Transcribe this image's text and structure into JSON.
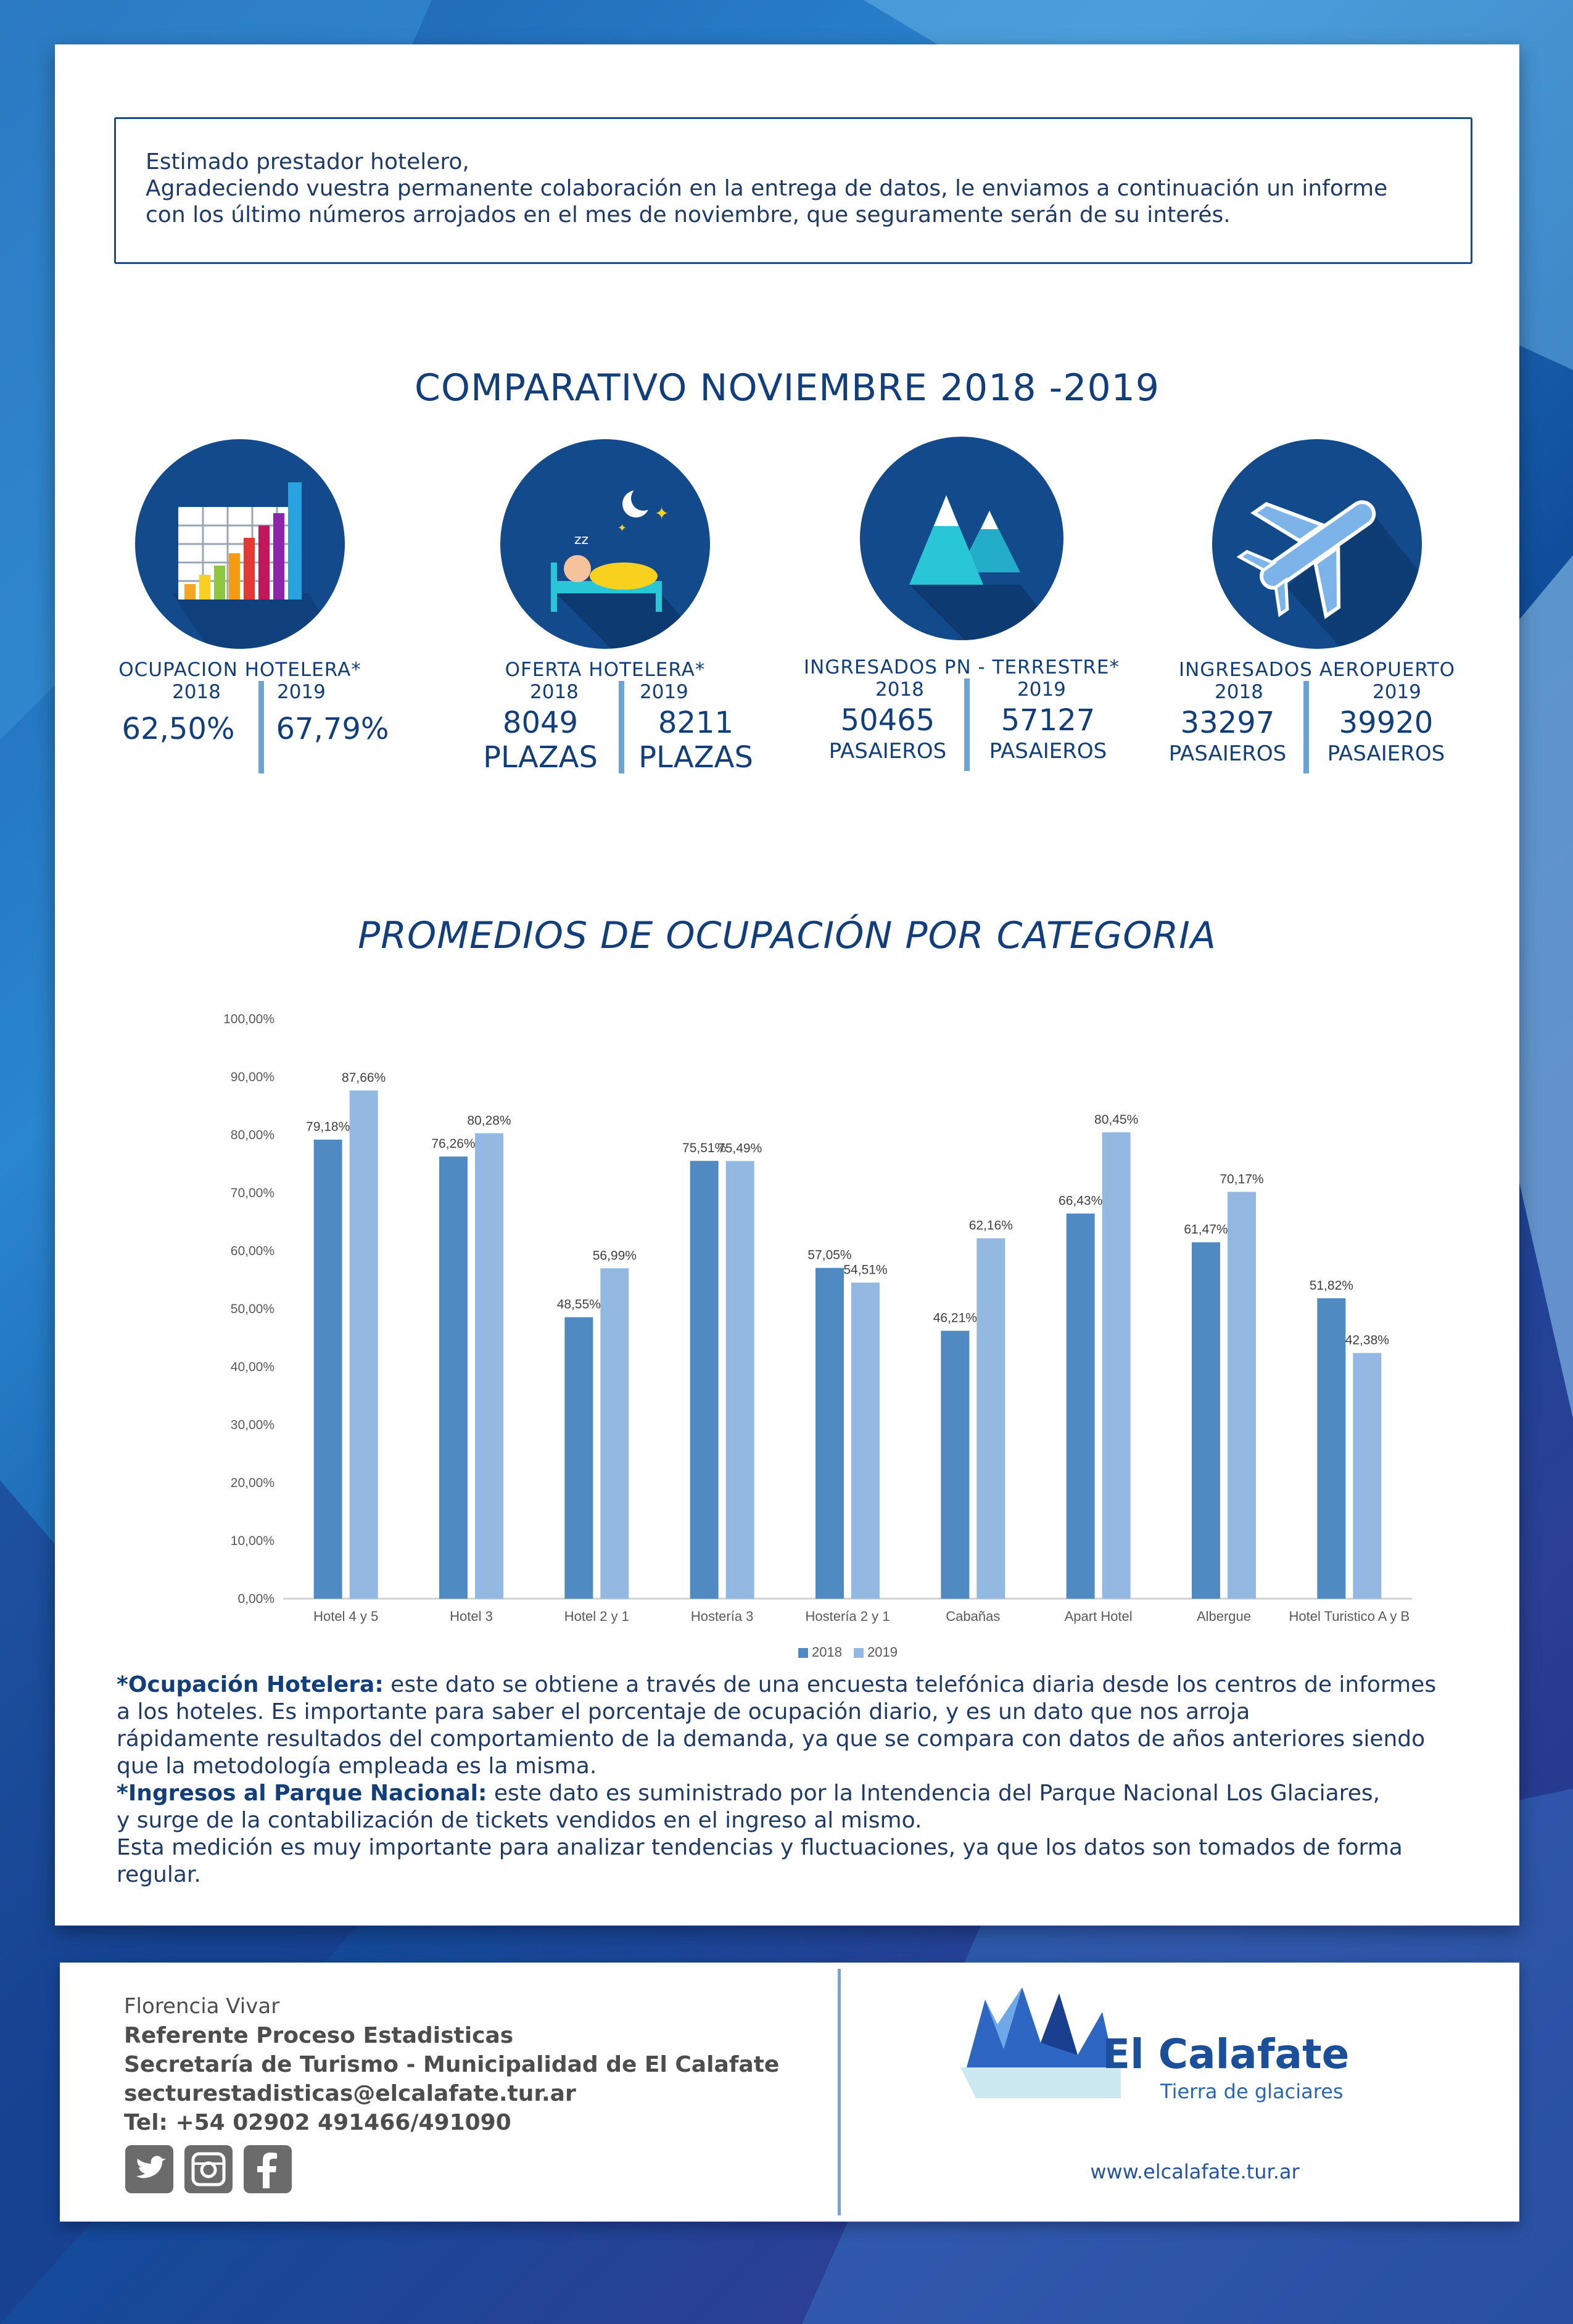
{
  "intro": {
    "line1": "Estimado prestador hotelero,",
    "line2": "Agradeciendo vuestra permanente colaboración en la entrega de datos, le enviamos a continuación un informe",
    "line3": "con los último números arrojados en el mes de noviembre, que seguramente serán de su interés."
  },
  "title1": "COMPARATIVO NOVIEMBRE 2018 -2019",
  "stats": [
    {
      "icon": "bar-chart-icon",
      "label": "OCUPACION HOTELERA*",
      "y1": "2018",
      "y2": "2019",
      "v1": "62,50%",
      "v2": "67,79%"
    },
    {
      "icon": "bed-icon",
      "label": "OFERTA HOTELERA*",
      "y1": "2018",
      "y2": "2019",
      "v1": "8049",
      "v1b": "PLAZAS",
      "v2": "8211",
      "v2b": "PLAZAS"
    },
    {
      "icon": "mountains-icon",
      "label": "INGRESADOS PN - TERRESTRE*",
      "y1": "2018",
      "y2": "2019",
      "v1": "50465",
      "v1b": "PASAIEROS",
      "v2": "57127",
      "v2b": "PASAIEROS"
    },
    {
      "icon": "airplane-icon",
      "label": "INGRESADOS AEROPUERTO",
      "y1": "2018",
      "y2": "2019",
      "v1": "33297",
      "v1b": "PASAIEROS",
      "v2": "39920",
      "v2b": "PASAIEROS"
    }
  ],
  "title2": "PROMEDIOS DE OCUPACIÓN POR CATEGORIA",
  "chart_data": {
    "type": "bar",
    "categories": [
      "Hotel 4 y 5",
      "Hotel 3",
      "Hotel 2 y 1",
      "Hostería 3",
      "Hostería 2 y 1",
      "Cabañas",
      "Apart Hotel",
      "Albergue",
      "Hotel Turistico A y B"
    ],
    "series": [
      {
        "name": "2018",
        "values": [
          79.18,
          76.26,
          48.55,
          75.51,
          57.05,
          46.21,
          66.43,
          61.47,
          51.82
        ],
        "labels": [
          "79,18%",
          "76,26%",
          "48,55%",
          "75,51%",
          "57,05%",
          "46,21%",
          "66,43%",
          "61,47%",
          "51,82%"
        ],
        "color": "#4f8ac3"
      },
      {
        "name": "2019",
        "values": [
          87.66,
          80.28,
          56.99,
          75.49,
          54.51,
          62.16,
          80.45,
          70.17,
          42.38
        ],
        "labels": [
          "87,66%",
          "80,28%",
          "56,99%",
          "75,49%",
          "54,51%",
          "62,16%",
          "80,45%",
          "70,17%",
          "42,38%"
        ],
        "color": "#93b8e2"
      }
    ],
    "ylim": [
      0,
      100
    ],
    "yticks": [
      "0,00%",
      "10,00%",
      "20,00%",
      "30,00%",
      "40,00%",
      "50,00%",
      "60,00%",
      "70,00%",
      "80,00%",
      "90,00%",
      "100,00%"
    ],
    "legend": "bottom",
    "grid": false
  },
  "notes": {
    "n1_bold": "*Ocupación Hotelera:",
    "n1_a": " este dato se obtiene a través de una encuesta telefónica diaria desde los centros de informes",
    "n1_b": "a los hoteles. Es importante para saber el porcentaje de ocupación diario, y es un dato que nos arroja",
    "n1_c": "rápidamente resultados del comportamiento de la demanda, ya que se compara con datos de años anteriores siendo",
    "n1_d": "que la metodología empleada es la misma.",
    "n2_bold": "*Ingresos al Parque Nacional:",
    "n2_a": " este dato es suministrado por la Intendencia del Parque Nacional Los Glaciares,",
    "n2_b": "y surge de la contabilización de tickets vendidos en el ingreso al mismo.",
    "n2_c": "Esta medición es muy importante para analizar tendencias y fluctuaciones, ya que los datos son tomados de forma",
    "n2_d": "regular."
  },
  "footer": {
    "name": "Florencia Vivar",
    "role": "Referente Proceso Estadisticas",
    "org": "Secretaría de Turismo - Municipalidad de El Calafate",
    "email": "secturestadisticas@elcalafate.tur.ar",
    "tel": "Tel: +54 02902 491466/491090",
    "logo": "El Calafate",
    "tagline": "Tierra de glaciares",
    "web": "www.elcalafate.tur.ar",
    "social_icons": [
      "twitter-icon",
      "instagram-icon",
      "facebook-icon"
    ]
  }
}
